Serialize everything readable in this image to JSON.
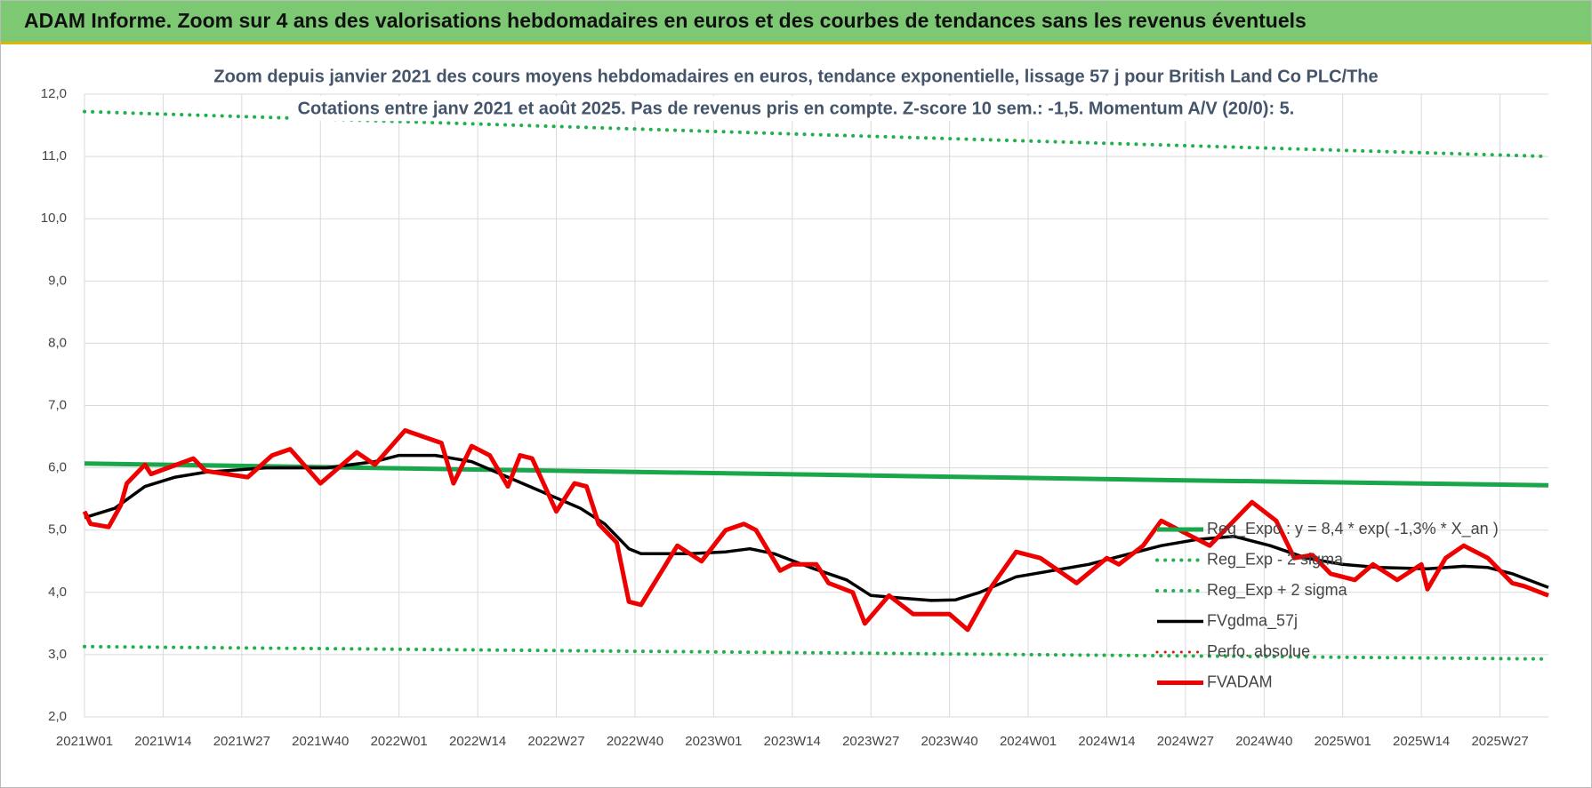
{
  "header": {
    "title": "ADAM Informe. Zoom sur 4 ans des valorisations hebdomadaires en euros et des courbes de tendances sans les revenus éventuels"
  },
  "chart_data": {
    "type": "line",
    "title": "Zoom depuis janvier 2021 des cours moyens hebdomadaires en euros, tendance exponentielle, lissage 57 j pour British Land Co PLC/The",
    "subtitle": "Cotations entre janv 2021 et août 2025.  Pas de revenus pris en compte. Z-score 10 sem.: -1,5. Momentum A/V (20/0): 5.",
    "xlim": [
      0,
      242
    ],
    "ylim": [
      2,
      12
    ],
    "grid": true,
    "xticks": [
      {
        "value": 0,
        "label": "2021W01"
      },
      {
        "value": 13,
        "label": "2021W14"
      },
      {
        "value": 26,
        "label": "2021W27"
      },
      {
        "value": 39,
        "label": "2021W40"
      },
      {
        "value": 52,
        "label": "2022W01"
      },
      {
        "value": 65,
        "label": "2022W14"
      },
      {
        "value": 78,
        "label": "2022W27"
      },
      {
        "value": 91,
        "label": "2022W40"
      },
      {
        "value": 104,
        "label": "2023W01"
      },
      {
        "value": 117,
        "label": "2023W14"
      },
      {
        "value": 130,
        "label": "2023W27"
      },
      {
        "value": 143,
        "label": "2023W40"
      },
      {
        "value": 156,
        "label": "2024W01"
      },
      {
        "value": 169,
        "label": "2024W14"
      },
      {
        "value": 182,
        "label": "2024W27"
      },
      {
        "value": 195,
        "label": "2024W40"
      },
      {
        "value": 208,
        "label": "2025W01"
      },
      {
        "value": 221,
        "label": "2025W14"
      },
      {
        "value": 234,
        "label": "2025W27"
      }
    ],
    "yticks": [
      {
        "value": 2,
        "label": "2,0"
      },
      {
        "value": 3,
        "label": "3,0"
      },
      {
        "value": 4,
        "label": "4,0"
      },
      {
        "value": 5,
        "label": "5,0"
      },
      {
        "value": 6,
        "label": "6,0"
      },
      {
        "value": 7,
        "label": "7,0"
      },
      {
        "value": 8,
        "label": "8,0"
      },
      {
        "value": 9,
        "label": "9,0"
      },
      {
        "value": 10,
        "label": "10,0"
      },
      {
        "value": 11,
        "label": "11,0"
      },
      {
        "value": 12,
        "label": "12,0"
      }
    ],
    "series": [
      {
        "name": "Reg_Expo : y = 8,4 * exp( -1,3% * X_an )",
        "color": "#1aa64a",
        "style": "solid",
        "width": 5,
        "x": [
          0,
          60,
          121,
          181,
          242
        ],
        "values": [
          6.07,
          5.98,
          5.89,
          5.8,
          5.72
        ]
      },
      {
        "name": "Reg_Exp - 2 sigma",
        "color": "#22b04e",
        "style": "dotted",
        "width": 4,
        "x": [
          0,
          121,
          242
        ],
        "values": [
          3.13,
          3.03,
          2.93
        ]
      },
      {
        "name": "Reg_Exp + 2 sigma",
        "color": "#22b04e",
        "style": "dotted",
        "width": 4,
        "x": [
          0,
          121,
          242
        ],
        "values": [
          11.72,
          11.35,
          11.0
        ]
      },
      {
        "name": "FVgdma_57j",
        "color": "#000000",
        "style": "solid",
        "width": 3.5,
        "x": [
          0,
          5,
          10,
          15,
          20,
          30,
          40,
          48,
          52,
          58,
          64,
          70,
          76,
          82,
          86,
          90,
          92,
          100,
          106,
          110,
          114,
          120,
          126,
          130,
          136,
          140,
          144,
          148,
          154,
          160,
          166,
          172,
          178,
          184,
          190,
          196,
          202,
          208,
          214,
          222,
          228,
          232,
          236,
          242
        ],
        "values": [
          5.2,
          5.35,
          5.7,
          5.85,
          5.93,
          6.0,
          6.0,
          6.1,
          6.2,
          6.2,
          6.1,
          5.85,
          5.6,
          5.35,
          5.1,
          4.7,
          4.62,
          4.62,
          4.65,
          4.7,
          4.62,
          4.4,
          4.2,
          3.95,
          3.9,
          3.87,
          3.88,
          4.0,
          4.25,
          4.35,
          4.45,
          4.6,
          4.75,
          4.85,
          4.9,
          4.75,
          4.55,
          4.45,
          4.4,
          4.38,
          4.42,
          4.4,
          4.3,
          4.08
        ]
      },
      {
        "name": "Perfo. absolue",
        "color": "#e31010",
        "style": "dotted",
        "width": 3,
        "x": [],
        "values": []
      },
      {
        "name": "FVADAM",
        "color": "#ee0000",
        "style": "solid",
        "width": 5,
        "x": [
          0,
          1,
          4,
          6,
          7,
          10,
          11,
          18,
          20,
          27,
          31,
          34,
          39,
          45,
          48,
          53,
          59,
          61,
          64,
          67,
          70,
          72,
          74,
          78,
          81,
          83,
          85,
          88,
          90,
          92,
          98,
          102,
          106,
          109,
          111,
          115,
          117,
          121,
          123,
          127,
          129,
          133,
          137,
          143,
          146,
          150,
          154,
          158,
          164,
          169,
          171,
          175,
          178,
          182,
          186,
          193,
          197,
          200,
          203,
          206,
          210,
          213,
          217,
          221,
          222,
          225,
          228,
          232,
          236,
          238,
          242
        ],
        "values": [
          5.3,
          5.1,
          5.05,
          5.4,
          5.75,
          6.05,
          5.9,
          6.15,
          5.95,
          5.85,
          6.2,
          6.3,
          5.75,
          6.25,
          6.05,
          6.6,
          6.4,
          5.75,
          6.35,
          6.2,
          5.7,
          6.2,
          6.15,
          5.3,
          5.75,
          5.7,
          5.1,
          4.8,
          3.85,
          3.8,
          4.75,
          4.5,
          5.0,
          5.1,
          5.0,
          4.35,
          4.45,
          4.45,
          4.15,
          4.0,
          3.5,
          3.95,
          3.65,
          3.65,
          3.4,
          4.1,
          4.65,
          4.55,
          4.15,
          4.55,
          4.45,
          4.75,
          5.15,
          4.95,
          4.75,
          5.45,
          5.15,
          4.55,
          4.6,
          4.3,
          4.2,
          4.45,
          4.2,
          4.45,
          4.05,
          4.55,
          4.75,
          4.55,
          4.15,
          4.1,
          3.95
        ]
      }
    ]
  }
}
